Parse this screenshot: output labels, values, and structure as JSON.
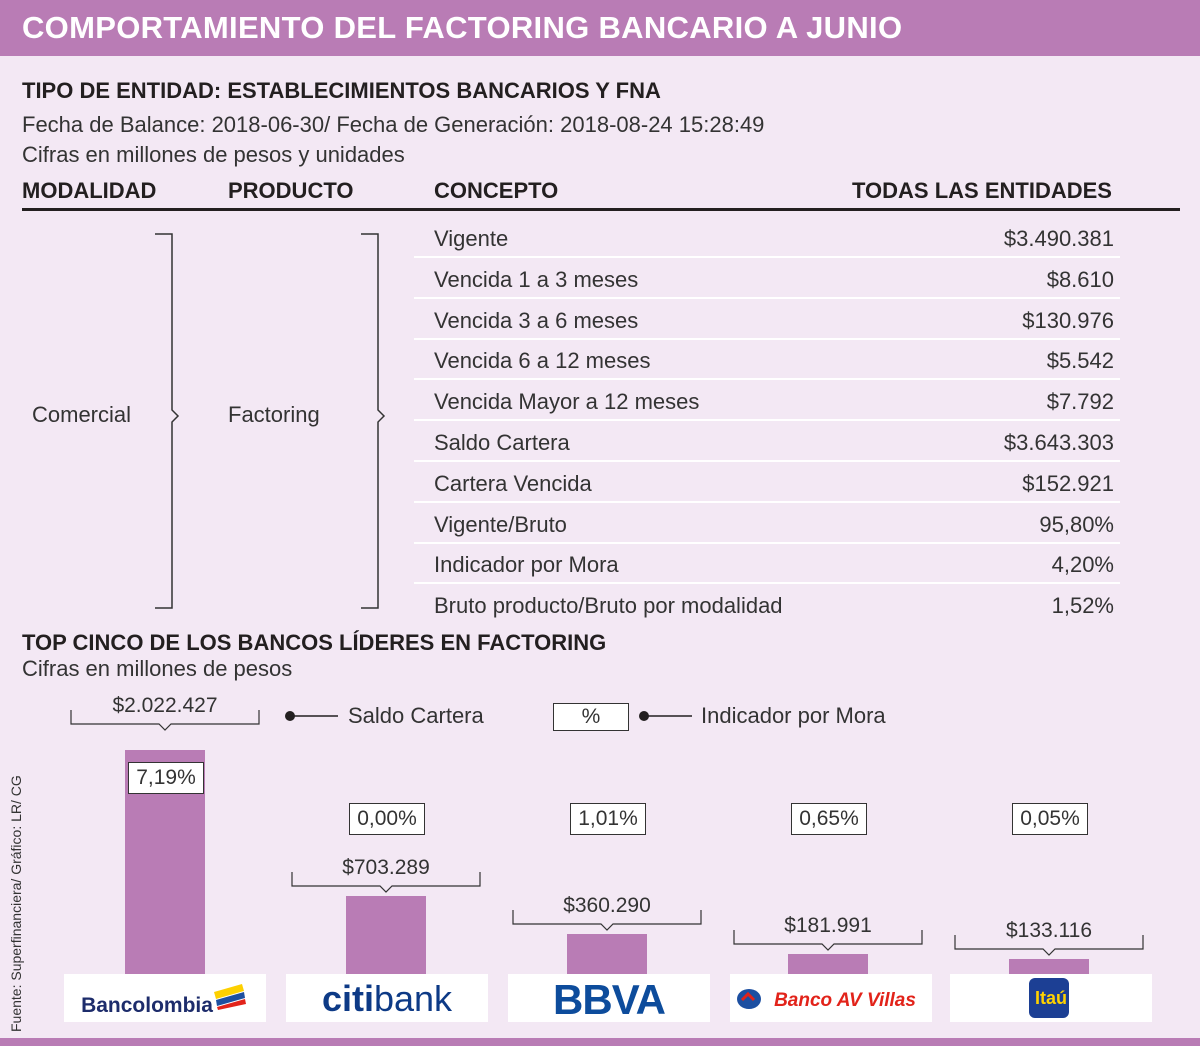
{
  "header": {
    "title": "COMPORTAMIENTO DEL FACTORING BANCARIO A JUNIO"
  },
  "table_section": {
    "heading": "TIPO DE ENTIDAD: ESTABLECIMIENTOS BANCARIOS Y FNA",
    "dates": "Fecha de Balance: 2018-06-30/ Fecha de Generación: 2018-08-24 15:28:49",
    "units": "Cifras en millones de pesos y unidades",
    "columns": [
      "MODALIDAD",
      "PRODUCTO",
      "CONCEPTO",
      "TODAS LAS ENTIDADES"
    ],
    "modalidad": "Comercial",
    "producto": "Factoring",
    "rows": [
      {
        "concept": "Vigente",
        "value": "$3.490.381"
      },
      {
        "concept": "Vencida 1 a 3 meses",
        "value": "$8.610"
      },
      {
        "concept": "Vencida 3 a 6 meses",
        "value": "$130.976"
      },
      {
        "concept": "Vencida 6 a 12 meses",
        "value": "$5.542"
      },
      {
        "concept": "Vencida Mayor a 12 meses",
        "value": "$7.792"
      },
      {
        "concept": "Saldo Cartera",
        "value": "$3.643.303"
      },
      {
        "concept": "Cartera Vencida",
        "value": "$152.921"
      },
      {
        "concept": "Vigente/Bruto",
        "value": "95,80%"
      },
      {
        "concept": "Indicador por Mora",
        "value": "4,20%"
      },
      {
        "concept": "Bruto producto/Bruto por modalidad",
        "value": "1,52%"
      }
    ]
  },
  "chart_section": {
    "heading": "TOP CINCO DE LOS BANCOS LÍDERES EN FACTORING",
    "units": "Cifras en millones de pesos",
    "legend": {
      "saldo": "Saldo Cartera",
      "pct_symbol": "%",
      "mora": "Indicador por Mora"
    }
  },
  "chart_data": {
    "type": "bar",
    "categories": [
      "Bancolombia",
      "citibank",
      "BBVA",
      "Banco AV Villas",
      "Itaú"
    ],
    "series": [
      {
        "name": "Saldo Cartera",
        "values": [
          2022427,
          703289,
          360290,
          181991,
          133116
        ],
        "labels": [
          "$2.022.427",
          "$703.289",
          "$360.290",
          "$181.991",
          "$133.116"
        ]
      },
      {
        "name": "Indicador por Mora",
        "values": [
          7.19,
          0.0,
          1.01,
          0.65,
          0.05
        ],
        "labels": [
          "7,19%",
          "0,00%",
          "1,01%",
          "0,65%",
          "0,05%"
        ]
      }
    ],
    "bar_color": "#b97cb5"
  },
  "logos": {
    "bancolombia": "Bancolombia",
    "citi": "citi",
    "bank": "bank",
    "bbva": "BBVA",
    "avvillas": "Banco AV Villas",
    "itau": "Itaú"
  },
  "source": "Fuente: Superfinanciera/ Gráfico: LR/ CG",
  "colors": {
    "accent": "#b97cb5",
    "background": "#f3e8f4",
    "text": "#231f20"
  }
}
